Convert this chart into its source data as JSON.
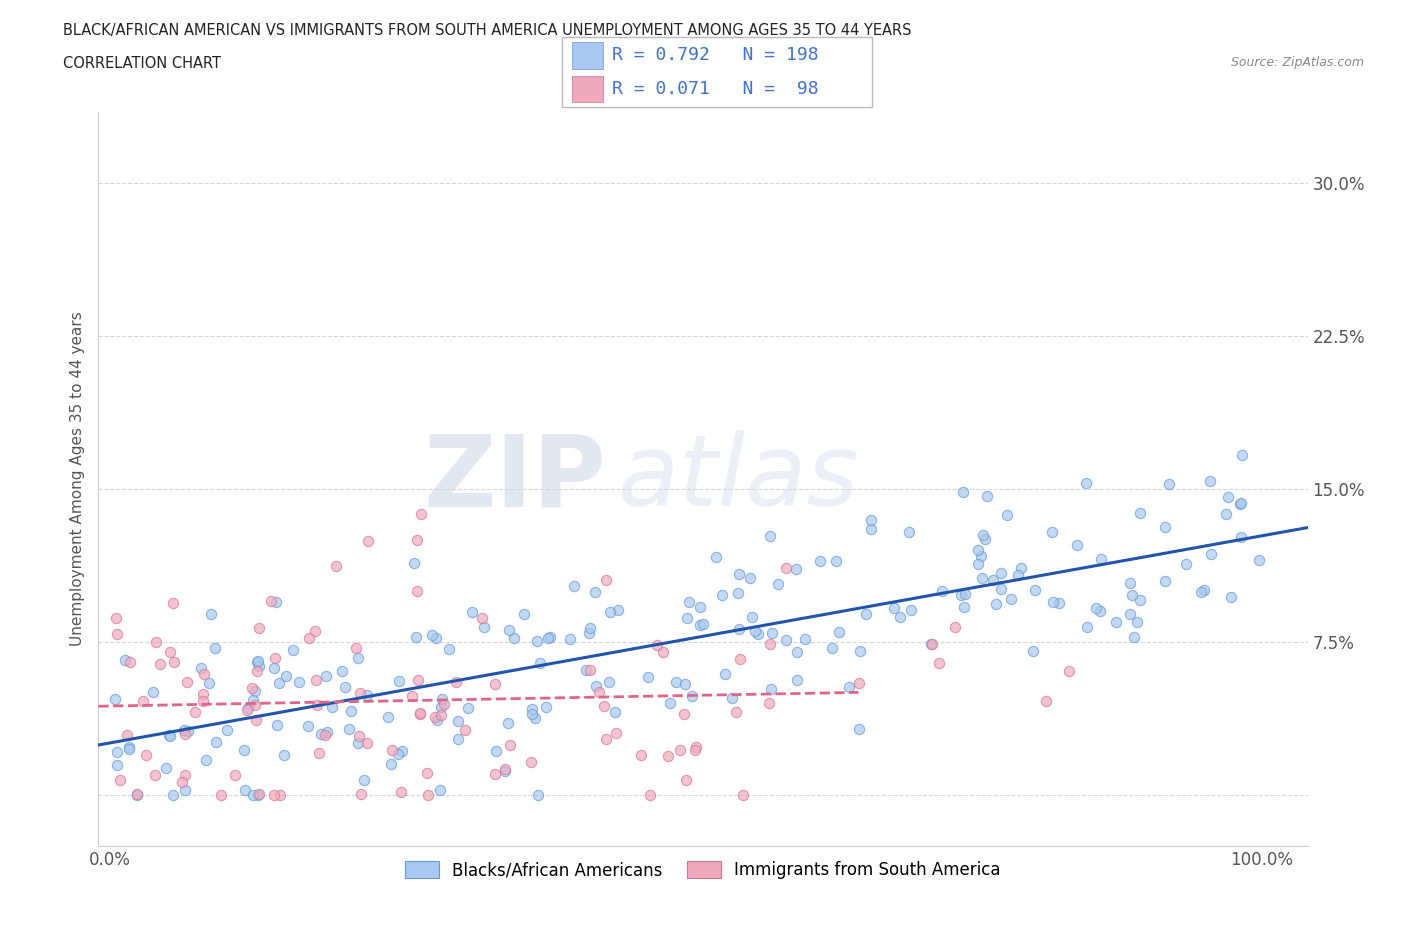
{
  "title_line1": "BLACK/AFRICAN AMERICAN VS IMMIGRANTS FROM SOUTH AMERICA UNEMPLOYMENT AMONG AGES 35 TO 44 YEARS",
  "title_line2": "CORRELATION CHART",
  "source": "Source: ZipAtlas.com",
  "ylabel": "Unemployment Among Ages 35 to 44 years",
  "blue_R": 0.792,
  "blue_N": 198,
  "pink_R": 0.071,
  "pink_N": 98,
  "blue_color": "#a8c8f0",
  "pink_color": "#f0a8bc",
  "blue_edge_color": "#6699cc",
  "pink_edge_color": "#cc7799",
  "blue_line_color": "#2255aa",
  "pink_line_color": "#dd6688",
  "legend_label_blue": "Blacks/African Americans",
  "legend_label_pink": "Immigrants from South America",
  "watermark_zip": "ZIP",
  "watermark_atlas": "atlas",
  "background_color": "#ffffff",
  "grid_color": "#cccccc",
  "title_color": "#222222",
  "stat_color": "#4472c4",
  "xlim": [
    -0.01,
    1.04
  ],
  "ylim": [
    -0.025,
    0.335
  ],
  "ytick_vals": [
    0.0,
    0.075,
    0.15,
    0.225,
    0.3
  ],
  "ytick_labels": [
    "",
    "7.5%",
    "15.0%",
    "22.5%",
    "30.0%"
  ]
}
